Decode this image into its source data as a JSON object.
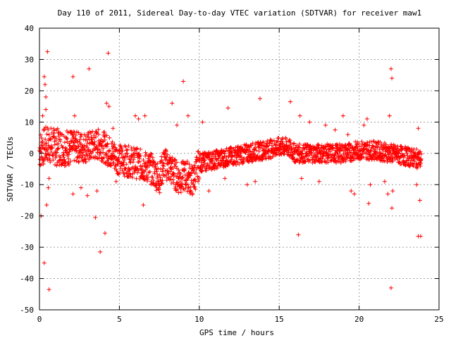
{
  "chart_data": {
    "type": "scatter",
    "title": "Day 110 of 2011, Sidereal Day-to-day VTEC variation (SDTVAR) for receiver maw1",
    "xlabel": "GPS time / hours",
    "ylabel": "SDTVAR / TECUs",
    "xlim": [
      0,
      25
    ],
    "ylim": [
      -50,
      40
    ],
    "xticks": [
      0,
      5,
      10,
      15,
      20,
      25
    ],
    "yticks": [
      -50,
      -40,
      -30,
      -20,
      -10,
      0,
      10,
      20,
      30,
      40
    ],
    "grid": true,
    "marker": "+",
    "color": "#ff0000",
    "outliers": [
      [
        0.1,
        -20
      ],
      [
        0.2,
        12
      ],
      [
        0.3,
        24.5
      ],
      [
        0.35,
        22
      ],
      [
        0.4,
        18
      ],
      [
        0.5,
        32.5
      ],
      [
        0.4,
        14
      ],
      [
        0.3,
        -35
      ],
      [
        0.6,
        -43.5
      ],
      [
        0.45,
        -16.5
      ],
      [
        0.55,
        -11
      ],
      [
        0.6,
        -8
      ],
      [
        2.1,
        24.5
      ],
      [
        2.2,
        12
      ],
      [
        2.1,
        -13
      ],
      [
        2.6,
        -11
      ],
      [
        3.0,
        -13.5
      ],
      [
        3.1,
        27
      ],
      [
        3.5,
        -20.5
      ],
      [
        3.8,
        -31.5
      ],
      [
        4.1,
        -25.5
      ],
      [
        4.3,
        32
      ],
      [
        4.2,
        16
      ],
      [
        4.35,
        15
      ],
      [
        3.6,
        -12
      ],
      [
        4.6,
        8
      ],
      [
        4.8,
        -9
      ],
      [
        6.0,
        12
      ],
      [
        6.2,
        11
      ],
      [
        6.5,
        -16.5
      ],
      [
        6.6,
        12
      ],
      [
        8.3,
        16
      ],
      [
        8.6,
        9
      ],
      [
        9.0,
        23
      ],
      [
        9.3,
        12
      ],
      [
        10.2,
        10
      ],
      [
        10.6,
        -12
      ],
      [
        11.8,
        14.5
      ],
      [
        11.6,
        -8
      ],
      [
        13.0,
        -10
      ],
      [
        13.8,
        17.5
      ],
      [
        13.5,
        -9
      ],
      [
        15.7,
        16.5
      ],
      [
        16.2,
        -26
      ],
      [
        16.3,
        12
      ],
      [
        16.4,
        -8
      ],
      [
        16.9,
        10
      ],
      [
        17.5,
        -9
      ],
      [
        17.9,
        9
      ],
      [
        18.5,
        7.5
      ],
      [
        19.0,
        12
      ],
      [
        19.3,
        6
      ],
      [
        19.5,
        -12
      ],
      [
        19.7,
        -13
      ],
      [
        20.3,
        9
      ],
      [
        20.5,
        11
      ],
      [
        20.6,
        -16
      ],
      [
        20.7,
        -10
      ],
      [
        21.6,
        -9
      ],
      [
        22.0,
        27
      ],
      [
        22.05,
        24
      ],
      [
        22.0,
        -43
      ],
      [
        22.05,
        -17.5
      ],
      [
        22.1,
        -12
      ],
      [
        21.9,
        12
      ],
      [
        21.8,
        -13
      ],
      [
        23.7,
        -26.5
      ],
      [
        23.8,
        -15
      ],
      [
        23.85,
        -26.5
      ],
      [
        23.6,
        -10
      ],
      [
        23.7,
        8
      ]
    ]
  }
}
